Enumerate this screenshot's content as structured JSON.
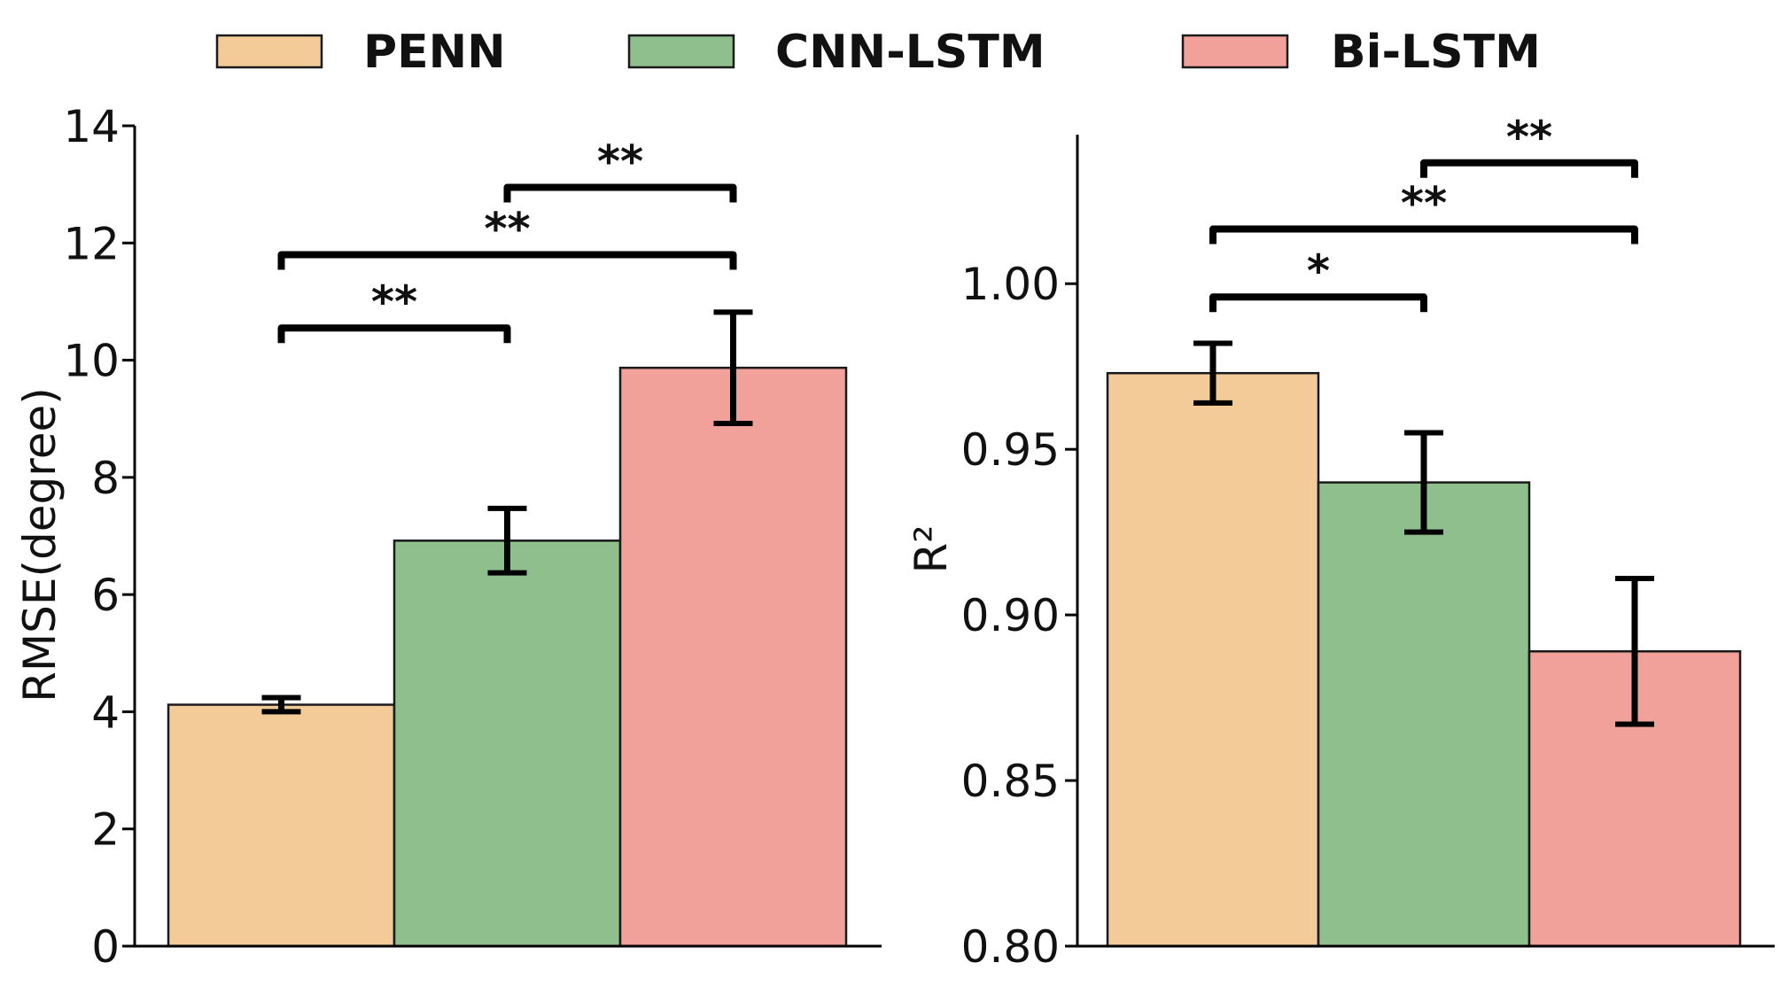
{
  "colors": {
    "PENN": "#f2cb98",
    "CNN-LSTM": "#8fbf8c",
    "Bi-LSTM": "#f2a09a",
    "edge": "#1a1a1a",
    "axis": "#000000"
  },
  "legend": {
    "placement": "top-center",
    "items": [
      "PENN",
      "CNN-LSTM",
      "Bi-LSTM"
    ]
  },
  "chart_data": [
    {
      "type": "bar",
      "title": "",
      "xlabel": "",
      "ylabel": "RMSE(degree)",
      "ylim": [
        0,
        14
      ],
      "yticks": [
        0,
        2,
        4,
        6,
        8,
        10,
        12,
        14
      ],
      "ytick_labels": [
        "0",
        "2",
        "4",
        "6",
        "8",
        "10",
        "12",
        "14"
      ],
      "grid": false,
      "categories": [
        "PENN",
        "CNN-LSTM",
        "Bi-LSTM"
      ],
      "values": [
        4.12,
        6.92,
        9.87
      ],
      "errors": [
        0.12,
        0.55,
        0.95
      ],
      "significance": [
        {
          "from": 0,
          "to": 1,
          "label": "**",
          "level": 10.55
        },
        {
          "from": 0,
          "to": 2,
          "label": "**",
          "level": 11.8
        },
        {
          "from": 1,
          "to": 2,
          "label": "**",
          "level": 12.95
        }
      ]
    },
    {
      "type": "bar",
      "title": "",
      "xlabel": "",
      "ylabel": "R²",
      "ylim": [
        0.8,
        1.045
      ],
      "yticks": [
        0.8,
        0.85,
        0.9,
        0.95,
        1.0
      ],
      "ytick_labels": [
        "0.80",
        "0.85",
        "0.90",
        "0.95",
        "1.00"
      ],
      "grid": false,
      "categories": [
        "PENN",
        "CNN-LSTM",
        "Bi-LSTM"
      ],
      "values": [
        0.973,
        0.94,
        0.889
      ],
      "errors": [
        0.009,
        0.015,
        0.022
      ],
      "significance": [
        {
          "from": 0,
          "to": 1,
          "label": "*",
          "level": 0.996
        },
        {
          "from": 0,
          "to": 2,
          "label": "**",
          "level": 1.0165
        },
        {
          "from": 1,
          "to": 2,
          "label": "**",
          "level": 1.0365
        }
      ]
    }
  ]
}
